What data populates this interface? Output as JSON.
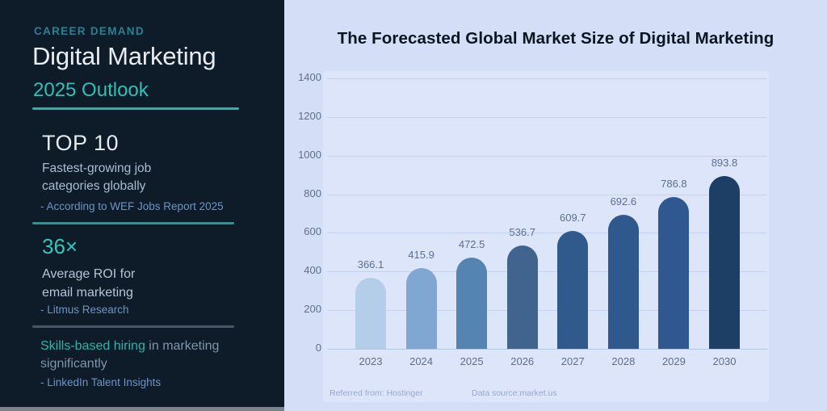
{
  "left_panel": {
    "eyebrow": "CAREER DEMAND",
    "title": "Digital Marketing",
    "subtitle": "2025 Outlook",
    "background_color": "#0e1b29",
    "accent_color": "#2ab3aa",
    "stats": [
      {
        "headline": "TOP 10",
        "description_lines": [
          "Fastest-growing job",
          "categories globally"
        ],
        "source": "- According to WEF Jobs Report 2025"
      },
      {
        "headline": "36×",
        "description_lines": [
          "Average ROI for",
          "email marketing"
        ],
        "source": "- Litmus Research"
      },
      {
        "highlight": "Skills-based hiring",
        "description_rest": " in marketing significantly",
        "source": "- LinkedIn Talent Insights"
      }
    ]
  },
  "chart_data": {
    "type": "bar",
    "title": "The Forecasted Global Market Size of Digital Marketing",
    "categories": [
      "2023",
      "2024",
      "2025",
      "2026",
      "2027",
      "2028",
      "2029",
      "2030"
    ],
    "values": [
      366.1,
      415.9,
      472.5,
      536.7,
      609.7,
      692.6,
      786.8,
      893.8
    ],
    "ylim": [
      0,
      1400
    ],
    "yticks": [
      0,
      200,
      400,
      600,
      800,
      1000,
      1200,
      1400
    ],
    "grid": true,
    "legend": false,
    "bar_colors": [
      "#b4cde9",
      "#80a7d1",
      "#5583b2",
      "#41648e",
      "#315a8c",
      "#2f588c",
      "#2f5890",
      "#1d3f66"
    ],
    "background_color": "#d4dff7",
    "plot_background_color": "#dce5fa",
    "gridline_color": "#c5d2ee",
    "axis_line_color": "#b7c5e4",
    "footer_left": "Referred from: Hostinger",
    "footer_right": "Data source:market.us"
  }
}
